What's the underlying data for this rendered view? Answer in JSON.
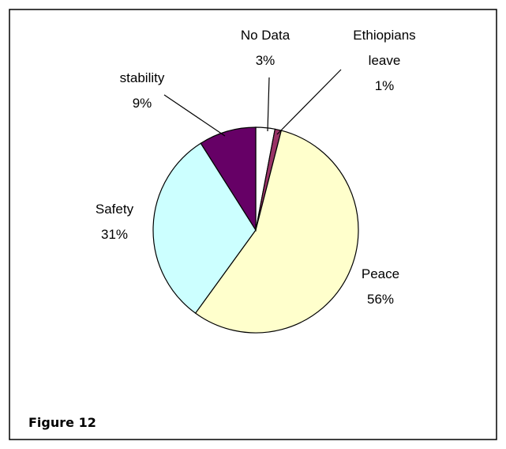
{
  "chart_data": {
    "type": "pie",
    "title": "Figure 12",
    "categories": [
      "No Data",
      "Ethiopians leave",
      "Peace",
      "Safety",
      "stability"
    ],
    "values": [
      3,
      1,
      56,
      31,
      9
    ],
    "value_labels": [
      "3%",
      "1%",
      "56%",
      "31%",
      "9%"
    ],
    "colors": [
      "#ffffff",
      "#993366",
      "#ffffcc",
      "#ccffff",
      "#660066"
    ]
  }
}
